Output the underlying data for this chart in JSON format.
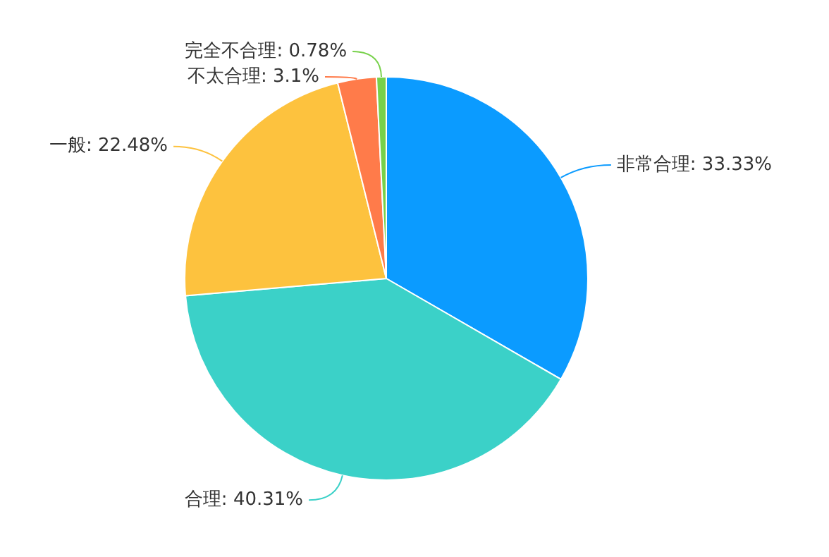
{
  "chart_data": {
    "type": "pie",
    "categories": [
      "非常合理",
      "合理",
      "一般",
      "不太合理",
      "完全不合理"
    ],
    "values": [
      33.33,
      40.31,
      22.48,
      3.1,
      0.78
    ],
    "value_labels": [
      "33.33%",
      "40.31%",
      "22.48%",
      "3.1%",
      "0.78%"
    ],
    "colors": [
      "#0b9bff",
      "#3bd1c8",
      "#fdc23e",
      "#ff7b4a",
      "#77d14a"
    ],
    "legend": false
  }
}
